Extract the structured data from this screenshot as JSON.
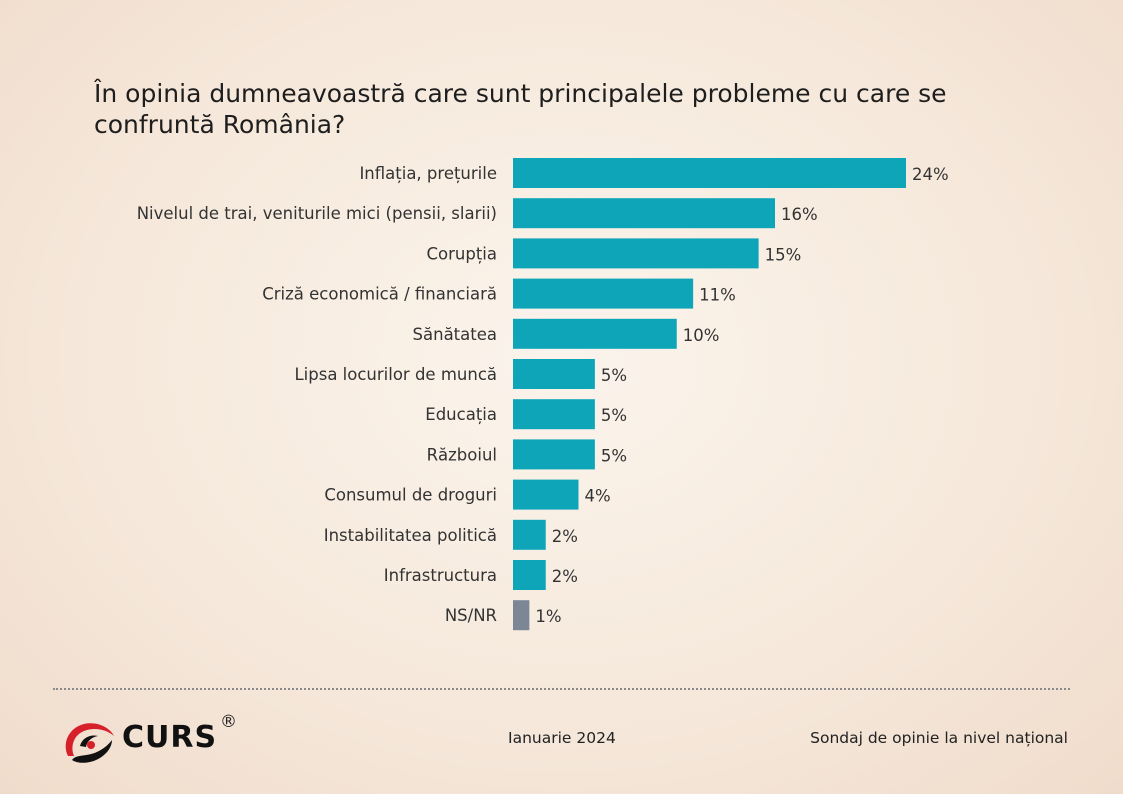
{
  "title": "În opinia dumneavoastră care sunt principalele probleme cu care se confruntă România?",
  "chart_data": {
    "type": "bar",
    "orientation": "horizontal",
    "categories": [
      "Inflația, prețurile",
      "Nivelul de trai, veniturile mici (pensii, slarii)",
      "Corupția",
      "Criză economică / financiară",
      "Sănătatea",
      "Lipsa locurilor de muncă",
      "Educația",
      "Războiul",
      "Consumul de droguri",
      "Instabilitatea politică",
      "Infrastructura",
      "NS/NR"
    ],
    "values": [
      24,
      16,
      15,
      11,
      10,
      5,
      5,
      5,
      4,
      2,
      2,
      1
    ],
    "value_labels": [
      "24%",
      "16%",
      "15%",
      "11%",
      "10%",
      "5%",
      "5%",
      "5%",
      "4%",
      "2%",
      "2%",
      "1%"
    ],
    "unit": "%",
    "colors": {
      "default": "#0ea5b8",
      "NS/NR": "#7c8695"
    },
    "grid": false,
    "legend": "none"
  },
  "footer": {
    "brand": "CURS",
    "registered": "®",
    "date": "Ianuarie 2024",
    "source": "Sondaj de opinie la nivel național"
  },
  "icons": {
    "logo": "curs-swirl-logo-icon"
  }
}
